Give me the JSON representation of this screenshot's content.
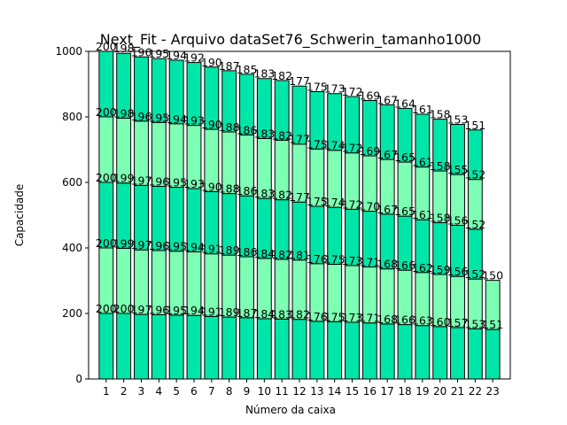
{
  "chart_data": {
    "type": "bar",
    "stacked": true,
    "title": "Next_Fit - Arquivo dataSet76_Schwerin_tamanho1000",
    "xlabel": "Número da caixa",
    "ylabel": "Capacidade",
    "ylim": [
      0,
      1000
    ],
    "yticks": [
      0,
      200,
      400,
      600,
      800,
      1000
    ],
    "categories": [
      "1",
      "2",
      "3",
      "4",
      "5",
      "6",
      "7",
      "8",
      "9",
      "10",
      "11",
      "12",
      "13",
      "14",
      "15",
      "16",
      "17",
      "18",
      "19",
      "20",
      "21",
      "22",
      "23"
    ],
    "colors": {
      "dark": "#00e6a8",
      "light": "#7dffb4",
      "edge": "#000000"
    },
    "series": [
      {
        "values": [
          200,
          200,
          197,
          196,
          195,
          194,
          191,
          189,
          187,
          184,
          183,
          182,
          176,
          175,
          173,
          171,
          168,
          166,
          163,
          160,
          157,
          153,
          151
        ]
      },
      {
        "values": [
          200,
          199,
          197,
          196,
          195,
          194,
          191,
          189,
          186,
          184,
          182,
          181,
          176,
          175,
          173,
          171,
          168,
          166,
          162,
          159,
          156,
          152,
          150
        ]
      },
      {
        "values": [
          200,
          199,
          197,
          196,
          195,
          193,
          190,
          188,
          186,
          183,
          182,
          177,
          175,
          174,
          172,
          170,
          167,
          165,
          161,
          158,
          156,
          152,
          0
        ]
      },
      {
        "values": [
          200,
          198,
          196,
          195,
          194,
          193,
          190,
          188,
          186,
          183,
          182,
          177,
          175,
          174,
          172,
          169,
          167,
          165,
          161,
          158,
          155,
          152,
          0
        ]
      },
      {
        "values": [
          200,
          198,
          196,
          195,
          194,
          192,
          190,
          187,
          185,
          183,
          182,
          177,
          175,
          173,
          172,
          169,
          167,
          164,
          161,
          158,
          153,
          151,
          0
        ]
      }
    ]
  }
}
